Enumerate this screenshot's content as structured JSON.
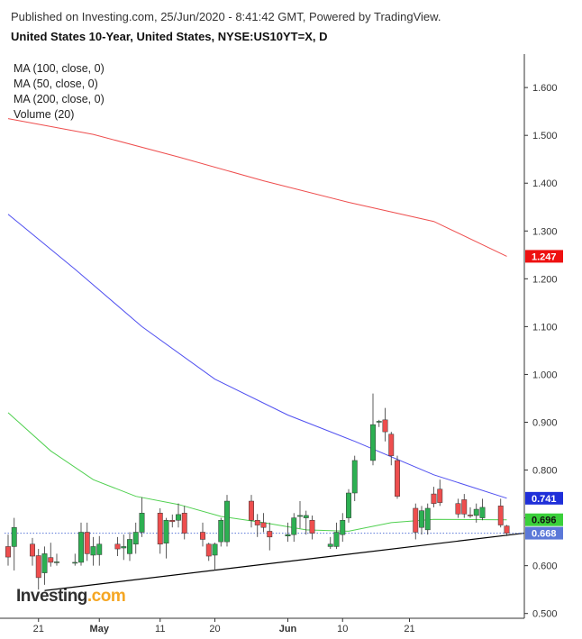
{
  "header": {
    "published": "Published on Investing.com, 25/Jun/2020 - 8:41:42 GMT, Powered by TradingView.",
    "title": "United States 10-Year, United States, NYSE:US10YT=X, D"
  },
  "legend": {
    "items": [
      "MA (100, close, 0)",
      "MA (50, close, 0)",
      "MA (200, close, 0)",
      "Volume (20)"
    ]
  },
  "logo": {
    "text": "Investing",
    "suffix": ".com"
  },
  "colors": {
    "up": "#2db052",
    "down": "#ee4e4e",
    "ma200": "#ee4e4e",
    "ma100": "#5050f0",
    "ma50": "#50d050",
    "last": "#5b78d8",
    "ma200_badge": "#ee1111",
    "ma100_badge": "#1f2fd9",
    "ma50_badge": "#3ad03a",
    "trendline": "#000000"
  },
  "chart_data": {
    "type": "candlestick",
    "ylim": [
      0.49,
      1.67
    ],
    "y_ticks": [
      "0.500",
      "0.600",
      "0.700",
      "0.800",
      "0.900",
      "1.000",
      "1.100",
      "1.200",
      "1.300",
      "1.400",
      "1.500",
      "1.600"
    ],
    "x_ticks": [
      {
        "label": "21",
        "date": "2020-04-21"
      },
      {
        "label": "May",
        "date": "2020-05-01"
      },
      {
        "label": "11",
        "date": "2020-05-11"
      },
      {
        "label": "20",
        "date": "2020-05-20"
      },
      {
        "label": "Jun",
        "date": "2020-06-01"
      },
      {
        "label": "10",
        "date": "2020-06-10"
      },
      {
        "label": "21",
        "date": "2020-06-21"
      }
    ],
    "candles": [
      {
        "date": "2020-04-16",
        "o": 0.64,
        "h": 0.665,
        "l": 0.6,
        "c": 0.618
      },
      {
        "date": "2020-04-17",
        "o": 0.64,
        "h": 0.7,
        "l": 0.59,
        "c": 0.68
      },
      {
        "date": "2020-04-20",
        "o": 0.645,
        "h": 0.658,
        "l": 0.6,
        "c": 0.62
      },
      {
        "date": "2020-04-21",
        "o": 0.621,
        "h": 0.635,
        "l": 0.55,
        "c": 0.575
      },
      {
        "date": "2020-04-22",
        "o": 0.585,
        "h": 0.64,
        "l": 0.56,
        "c": 0.625
      },
      {
        "date": "2020-04-23",
        "o": 0.617,
        "h": 0.648,
        "l": 0.598,
        "c": 0.607
      },
      {
        "date": "2020-04-24",
        "o": 0.607,
        "h": 0.625,
        "l": 0.6,
        "c": 0.608
      },
      {
        "date": "2020-04-27",
        "o": 0.606,
        "h": 0.625,
        "l": 0.6,
        "c": 0.607
      },
      {
        "date": "2020-04-28",
        "o": 0.607,
        "h": 0.69,
        "l": 0.6,
        "c": 0.67
      },
      {
        "date": "2020-04-29",
        "o": 0.67,
        "h": 0.69,
        "l": 0.61,
        "c": 0.625
      },
      {
        "date": "2020-04-30",
        "o": 0.622,
        "h": 0.66,
        "l": 0.6,
        "c": 0.64
      },
      {
        "date": "2020-05-01",
        "o": 0.623,
        "h": 0.662,
        "l": 0.6,
        "c": 0.645
      },
      {
        "date": "2020-05-04",
        "o": 0.645,
        "h": 0.66,
        "l": 0.62,
        "c": 0.635
      },
      {
        "date": "2020-05-05",
        "o": 0.637,
        "h": 0.665,
        "l": 0.612,
        "c": 0.64
      },
      {
        "date": "2020-05-06",
        "o": 0.625,
        "h": 0.67,
        "l": 0.61,
        "c": 0.655
      },
      {
        "date": "2020-05-07",
        "o": 0.645,
        "h": 0.69,
        "l": 0.625,
        "c": 0.67
      },
      {
        "date": "2020-05-08",
        "o": 0.67,
        "h": 0.743,
        "l": 0.66,
        "c": 0.71
      },
      {
        "date": "2020-05-11",
        "o": 0.71,
        "h": 0.72,
        "l": 0.625,
        "c": 0.645
      },
      {
        "date": "2020-05-12",
        "o": 0.647,
        "h": 0.7,
        "l": 0.615,
        "c": 0.695
      },
      {
        "date": "2020-05-13",
        "o": 0.695,
        "h": 0.707,
        "l": 0.68,
        "c": 0.692
      },
      {
        "date": "2020-05-14",
        "o": 0.695,
        "h": 0.73,
        "l": 0.68,
        "c": 0.707
      },
      {
        "date": "2020-05-15",
        "o": 0.71,
        "h": 0.725,
        "l": 0.655,
        "c": 0.668
      },
      {
        "date": "2020-05-18",
        "o": 0.67,
        "h": 0.69,
        "l": 0.64,
        "c": 0.655
      },
      {
        "date": "2020-05-19",
        "o": 0.645,
        "h": 0.648,
        "l": 0.61,
        "c": 0.62
      },
      {
        "date": "2020-05-20",
        "o": 0.622,
        "h": 0.648,
        "l": 0.59,
        "c": 0.645
      },
      {
        "date": "2020-05-21",
        "o": 0.65,
        "h": 0.7,
        "l": 0.64,
        "c": 0.695
      },
      {
        "date": "2020-05-22",
        "o": 0.65,
        "h": 0.748,
        "l": 0.64,
        "c": 0.735
      },
      {
        "date": "2020-05-26",
        "o": 0.735,
        "h": 0.748,
        "l": 0.68,
        "c": 0.695
      },
      {
        "date": "2020-05-27",
        "o": 0.695,
        "h": 0.708,
        "l": 0.66,
        "c": 0.685
      },
      {
        "date": "2020-05-28",
        "o": 0.69,
        "h": 0.71,
        "l": 0.67,
        "c": 0.68
      },
      {
        "date": "2020-05-29",
        "o": 0.672,
        "h": 0.69,
        "l": 0.632,
        "c": 0.66
      },
      {
        "date": "2020-06-01",
        "o": 0.662,
        "h": 0.69,
        "l": 0.65,
        "c": 0.665
      },
      {
        "date": "2020-06-02",
        "o": 0.665,
        "h": 0.71,
        "l": 0.65,
        "c": 0.7
      },
      {
        "date": "2020-06-03",
        "o": 0.703,
        "h": 0.735,
        "l": 0.678,
        "c": 0.705
      },
      {
        "date": "2020-06-04",
        "o": 0.7,
        "h": 0.715,
        "l": 0.665,
        "c": 0.705
      },
      {
        "date": "2020-06-05",
        "o": 0.695,
        "h": 0.705,
        "l": 0.655,
        "c": 0.668
      },
      {
        "date": "2020-06-08",
        "o": 0.64,
        "h": 0.66,
        "l": 0.635,
        "c": 0.645
      },
      {
        "date": "2020-06-09",
        "o": 0.64,
        "h": 0.69,
        "l": 0.635,
        "c": 0.67
      },
      {
        "date": "2020-06-10",
        "o": 0.665,
        "h": 0.71,
        "l": 0.65,
        "c": 0.695
      },
      {
        "date": "2020-06-11",
        "o": 0.7,
        "h": 0.76,
        "l": 0.69,
        "c": 0.752
      },
      {
        "date": "2020-06-12",
        "o": 0.752,
        "h": 0.83,
        "l": 0.735,
        "c": 0.82
      },
      {
        "date": "2020-06-15",
        "o": 0.82,
        "h": 0.96,
        "l": 0.81,
        "c": 0.895
      },
      {
        "date": "2020-06-16",
        "o": 0.9,
        "h": 0.905,
        "l": 0.89,
        "c": 0.902
      },
      {
        "date": "2020-06-17",
        "o": 0.905,
        "h": 0.93,
        "l": 0.86,
        "c": 0.88
      },
      {
        "date": "2020-06-18",
        "o": 0.875,
        "h": 0.88,
        "l": 0.81,
        "c": 0.83
      },
      {
        "date": "2020-06-19",
        "o": 0.82,
        "h": 0.83,
        "l": 0.74,
        "c": 0.745
      },
      {
        "date": "2020-06-22",
        "o": 0.72,
        "h": 0.73,
        "l": 0.655,
        "c": 0.67
      },
      {
        "date": "2020-06-23",
        "o": 0.68,
        "h": 0.725,
        "l": 0.665,
        "c": 0.715
      },
      {
        "date": "2020-06-24",
        "o": 0.675,
        "h": 0.73,
        "l": 0.665,
        "c": 0.72
      },
      {
        "date": "2020-06-25",
        "o": 0.75,
        "h": 0.765,
        "l": 0.722,
        "c": 0.73
      },
      {
        "date": "2020-06-26",
        "o": 0.76,
        "h": 0.78,
        "l": 0.725,
        "c": 0.732
      },
      {
        "date": "2020-06-29",
        "o": 0.73,
        "h": 0.74,
        "l": 0.7,
        "c": 0.708
      },
      {
        "date": "2020-06-30",
        "o": 0.738,
        "h": 0.75,
        "l": 0.7,
        "c": 0.708
      },
      {
        "date": "2020-07-01",
        "o": 0.706,
        "h": 0.722,
        "l": 0.7,
        "c": 0.705
      },
      {
        "date": "2020-07-02",
        "o": 0.705,
        "h": 0.73,
        "l": 0.69,
        "c": 0.718
      },
      {
        "date": "2020-07-03",
        "o": 0.7,
        "h": 0.74,
        "l": 0.695,
        "c": 0.722
      },
      {
        "date": "2020-07-06",
        "o": 0.725,
        "h": 0.74,
        "l": 0.68,
        "c": 0.685
      },
      {
        "date": "2020-07-07",
        "o": 0.683,
        "h": 0.685,
        "l": 0.662,
        "c": 0.668
      }
    ],
    "ma200": [
      {
        "date": "2020-04-16",
        "v": 1.535
      },
      {
        "date": "2020-04-30",
        "v": 1.502
      },
      {
        "date": "2020-05-14",
        "v": 1.455
      },
      {
        "date": "2020-05-28",
        "v": 1.405
      },
      {
        "date": "2020-06-11",
        "v": 1.36
      },
      {
        "date": "2020-06-25",
        "v": 1.32
      },
      {
        "date": "2020-07-07",
        "v": 1.247
      }
    ],
    "ma100": [
      {
        "date": "2020-04-16",
        "v": 1.335
      },
      {
        "date": "2020-04-27",
        "v": 1.22
      },
      {
        "date": "2020-05-08",
        "v": 1.1
      },
      {
        "date": "2020-05-20",
        "v": 0.99
      },
      {
        "date": "2020-06-01",
        "v": 0.915
      },
      {
        "date": "2020-06-12",
        "v": 0.86
      },
      {
        "date": "2020-06-25",
        "v": 0.79
      },
      {
        "date": "2020-07-07",
        "v": 0.741
      }
    ],
    "ma50": [
      {
        "date": "2020-04-16",
        "v": 0.92
      },
      {
        "date": "2020-04-23",
        "v": 0.84
      },
      {
        "date": "2020-04-30",
        "v": 0.78
      },
      {
        "date": "2020-05-07",
        "v": 0.745
      },
      {
        "date": "2020-05-14",
        "v": 0.728
      },
      {
        "date": "2020-05-21",
        "v": 0.703
      },
      {
        "date": "2020-05-28",
        "v": 0.69
      },
      {
        "date": "2020-06-04",
        "v": 0.675
      },
      {
        "date": "2020-06-11",
        "v": 0.672
      },
      {
        "date": "2020-06-18",
        "v": 0.69
      },
      {
        "date": "2020-06-25",
        "v": 0.697
      },
      {
        "date": "2020-07-07",
        "v": 0.696
      }
    ],
    "trendline": [
      {
        "date": "2020-04-22",
        "v": 0.548
      },
      {
        "date": "2020-07-10",
        "v": 0.668
      }
    ],
    "last_price": 0.668,
    "badges": [
      {
        "key": "ma200",
        "value": 1.247,
        "label": "1.247"
      },
      {
        "key": "ma100",
        "value": 0.741,
        "label": "0.741"
      },
      {
        "key": "ma50",
        "value": 0.696,
        "label": "0.696"
      },
      {
        "key": "last",
        "value": 0.668,
        "label": "0.668"
      }
    ]
  }
}
